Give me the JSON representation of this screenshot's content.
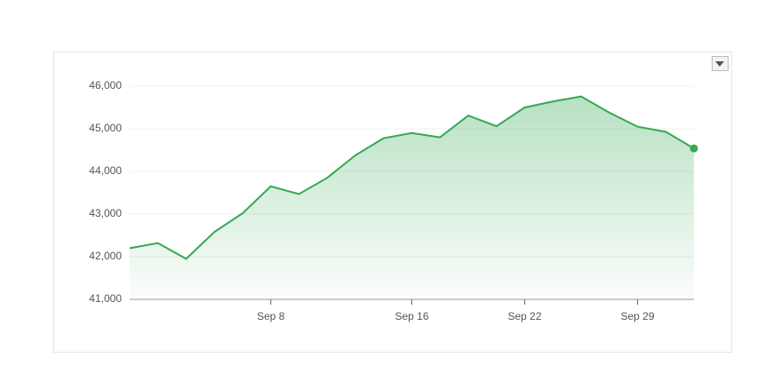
{
  "chart_data": {
    "type": "area",
    "categories": [
      null,
      null,
      null,
      null,
      null,
      "Sep 8",
      null,
      null,
      null,
      null,
      "Sep 16",
      null,
      null,
      null,
      "Sep 22",
      null,
      null,
      null,
      "Sep 29",
      null,
      null
    ],
    "series": [
      {
        "color": "#34a853",
        "values": [
          42200,
          42320,
          41950,
          42580,
          43020,
          43650,
          43470,
          43850,
          44380,
          44780,
          44900,
          44800,
          45310,
          45060,
          45500,
          45640,
          45760,
          45380,
          45050,
          44930,
          44540
        ]
      }
    ],
    "ylim": [
      41000,
      46000
    ],
    "yticks": [
      {
        "value": 41000,
        "label": "41,000"
      },
      {
        "value": 42000,
        "label": "42,000"
      },
      {
        "value": 43000,
        "label": "43,000"
      },
      {
        "value": 44000,
        "label": "44,000"
      },
      {
        "value": 45000,
        "label": "45,000"
      },
      {
        "value": 46000,
        "label": "46,000"
      }
    ],
    "grid": true
  }
}
